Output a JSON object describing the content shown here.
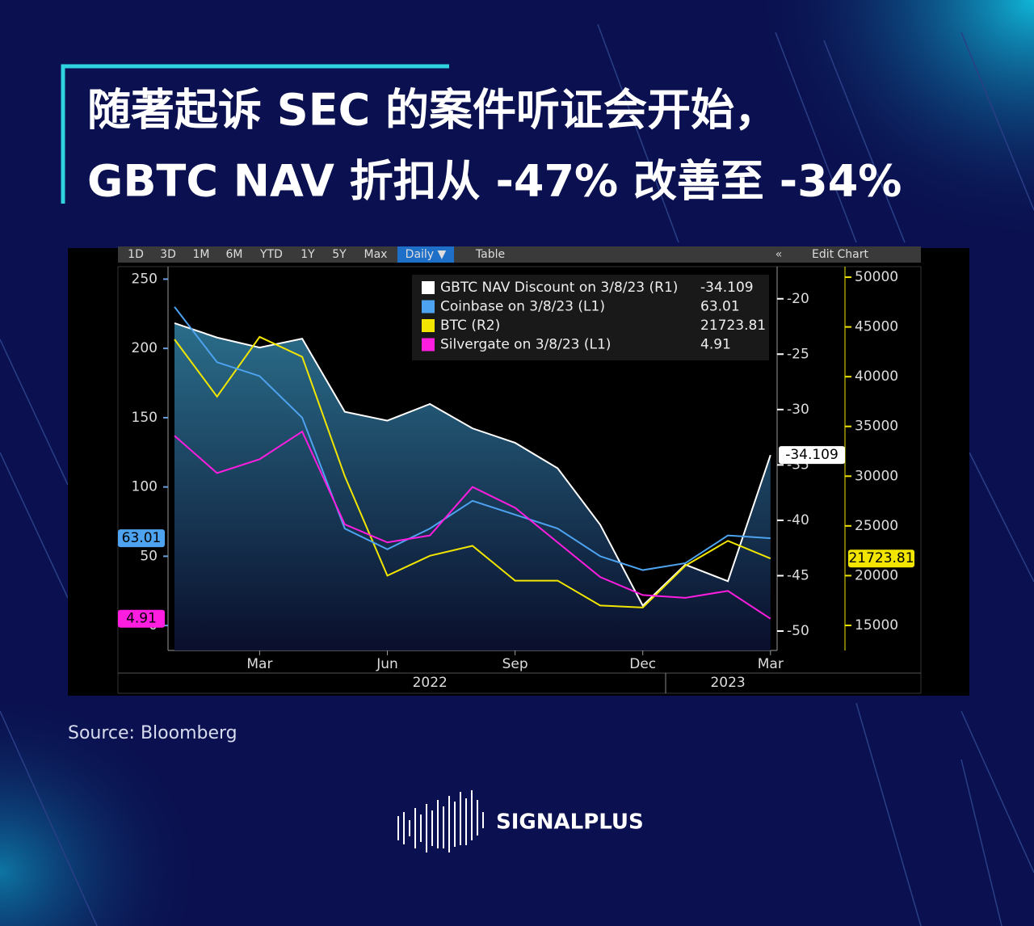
{
  "title": [
    "随著起诉 SEC 的案件听证会开始，",
    "GBTC NAV 折扣从 -47% 改善至 -34%"
  ],
  "toolbar": [
    "1D",
    "3D",
    "1M",
    "6M",
    "YTD",
    "1Y",
    "5Y",
    "Max",
    "Daily ▼",
    "Table",
    "Edit Chart"
  ],
  "chart_data": {
    "type": "line",
    "x": [
      "2022-01",
      "2022-02",
      "2022-03",
      "2022-04",
      "2022-05",
      "2022-06",
      "2022-07",
      "2022-08",
      "2022-09",
      "2022-10",
      "2022-11",
      "2022-12",
      "2023-01",
      "2023-02",
      "2023-03"
    ],
    "xticks": [
      {
        "value": "2022-03",
        "label": "Mar"
      },
      {
        "value": "2022-06",
        "label": "Jun"
      },
      {
        "value": "2022-09",
        "label": "Sep"
      },
      {
        "value": "2022-12",
        "label": "Dec"
      },
      {
        "value": "2023-03",
        "label": "Mar"
      }
    ],
    "year_labels": [
      {
        "value": "2022-07",
        "label": "2022"
      },
      {
        "value": "2023-02",
        "label": "2023"
      }
    ],
    "ylim": [
      -18,
      259
    ],
    "yticks": [
      0,
      50,
      100,
      150,
      200,
      250
    ],
    "y2lim": [
      -51.75,
      -17.1
    ],
    "y2ticks": [
      -50,
      -45,
      -40,
      -35,
      -30,
      -25,
      -20
    ],
    "y3lim": [
      12480,
      51060
    ],
    "y3ticks": [
      15000,
      20000,
      25000,
      30000,
      35000,
      40000,
      45000,
      50000
    ],
    "series": [
      {
        "name": "GBTC NAV Discount on 3/8/23 (R1)",
        "color": "#ffffff",
        "axis": "y2",
        "area": true,
        "values": [
          -22.2,
          -23.5,
          -24.4,
          -23.6,
          -30.2,
          -31,
          -29.5,
          -31.7,
          -33,
          -35.3,
          -40.4,
          -47.7,
          -44,
          -45.5,
          -34.109
        ]
      },
      {
        "name": "Coinbase on 3/8/23 (L1)",
        "color": "#4da3f0",
        "values": [
          230,
          190,
          180,
          150,
          70,
          55,
          70,
          90,
          80,
          70,
          50,
          40,
          45,
          65,
          63.01
        ]
      },
      {
        "name": "BTC (R2)",
        "color": "#f2e600",
        "axis": "y3",
        "values": [
          43750,
          38000,
          44000,
          42000,
          30000,
          20000,
          22000,
          23000,
          19500,
          19500,
          17000,
          16800,
          21000,
          23500,
          21723.81
        ]
      },
      {
        "name": "Silvergate on 3/8/23 (L1)",
        "color": "#ff1de0",
        "values": [
          137,
          110,
          120,
          140,
          73,
          60,
          65,
          100,
          85,
          60,
          35,
          22,
          20,
          25,
          4.91
        ]
      }
    ]
  },
  "source": "Source:  Bloomberg",
  "brand": "SIGNALPLUS"
}
